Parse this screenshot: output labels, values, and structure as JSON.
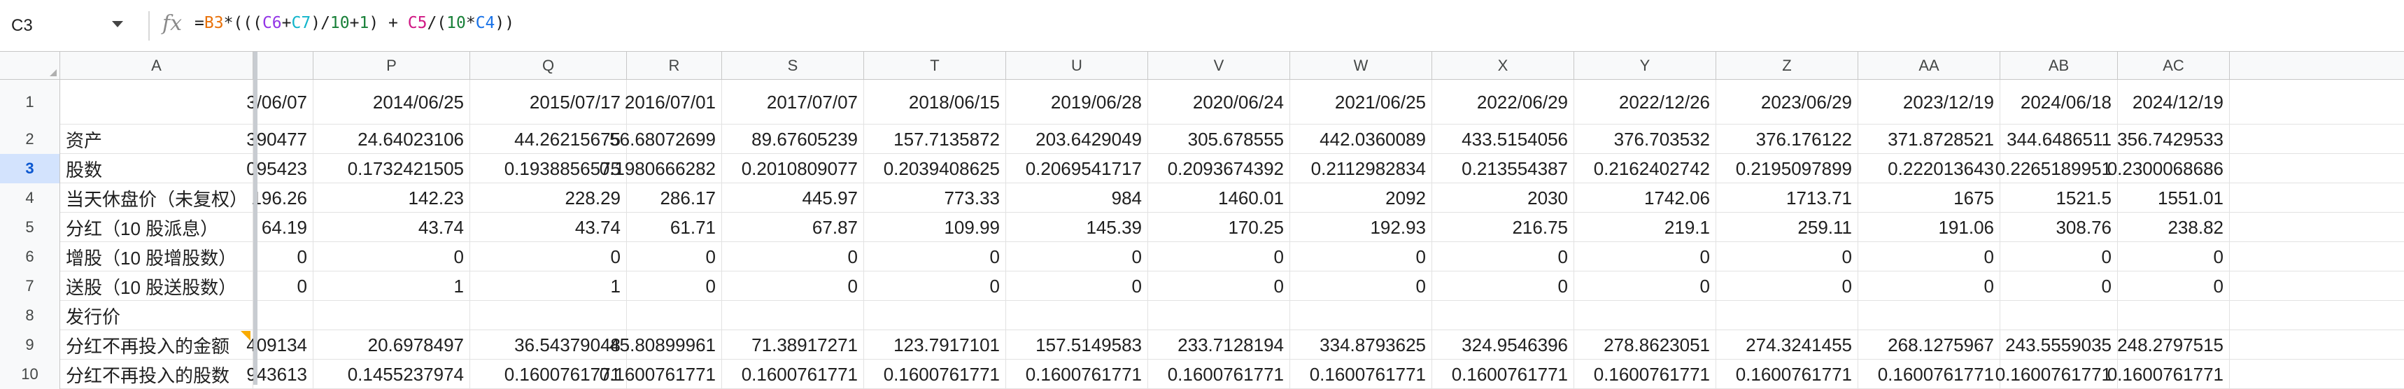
{
  "formula_bar": {
    "name_box": "C3",
    "fx_icon": "function-icon",
    "formula_prefix": "=",
    "formula_parts": [
      "B3",
      "*(((",
      "C6",
      "+",
      "C7",
      ")/",
      "10",
      "+",
      "1",
      ") + ",
      "C5",
      "/(",
      "10",
      "*",
      "C4",
      "))"
    ]
  },
  "columns": [
    {
      "letter": "A"
    },
    {
      "letter": ""
    },
    {
      "letter": "P"
    },
    {
      "letter": "Q"
    },
    {
      "letter": "R"
    },
    {
      "letter": "S"
    },
    {
      "letter": "T"
    },
    {
      "letter": "U"
    },
    {
      "letter": "V"
    },
    {
      "letter": "W"
    },
    {
      "letter": "X"
    },
    {
      "letter": "Y"
    },
    {
      "letter": "Z"
    },
    {
      "letter": "AA"
    },
    {
      "letter": "AB"
    },
    {
      "letter": "AC"
    }
  ],
  "rows": [
    {
      "num": "1",
      "label": "",
      "values": [
        "3/06/07",
        "2014/06/25",
        "2015/07/17",
        "2016/07/01",
        "2017/07/07",
        "2018/06/15",
        "2019/06/28",
        "2020/06/24",
        "2021/06/25",
        "2022/06/29",
        "2022/12/26",
        "2023/06/29",
        "2023/12/19",
        "2024/06/18",
        "2024/12/19"
      ]
    },
    {
      "num": "2",
      "label": "资产",
      "values": [
        "390477",
        "24.64023106",
        "44.26215675",
        "56.68072699",
        "89.67605239",
        "157.7135872",
        "203.6429049",
        "305.678555",
        "442.0360089",
        "433.5154056",
        "376.703532",
        "376.176122",
        "371.8728521",
        "344.6486511",
        "356.7429533"
      ]
    },
    {
      "num": "3",
      "label": "股数",
      "values": [
        "095423",
        "0.1732421505",
        "0.1938856575",
        "0.1980666282",
        "0.2010809077",
        "0.2039408625",
        "0.2069541717",
        "0.2093674392",
        "0.2112982834",
        "0.213554387",
        "0.2162402742",
        "0.2195097899",
        "0.222013643",
        "0.2265189951",
        "0.2300068686"
      ]
    },
    {
      "num": "4",
      "label": "当天休盘价（未复权）",
      "values": [
        "196.26",
        "142.23",
        "228.29",
        "286.17",
        "445.97",
        "773.33",
        "984",
        "1460.01",
        "2092",
        "2030",
        "1742.06",
        "1713.71",
        "1675",
        "1521.5",
        "1551.01"
      ]
    },
    {
      "num": "5",
      "label": "分红（10 股派息）",
      "values": [
        "64.19",
        "43.74",
        "43.74",
        "61.71",
        "67.87",
        "109.99",
        "145.39",
        "170.25",
        "192.93",
        "216.75",
        "219.1",
        "259.11",
        "191.06",
        "308.76",
        "238.82"
      ]
    },
    {
      "num": "6",
      "label": "增股（10 股增股数）",
      "values": [
        "0",
        "0",
        "0",
        "0",
        "0",
        "0",
        "0",
        "0",
        "0",
        "0",
        "0",
        "0",
        "0",
        "0",
        "0"
      ]
    },
    {
      "num": "7",
      "label": "送股（10 股送股数）",
      "values": [
        "0",
        "1",
        "1",
        "0",
        "0",
        "0",
        "0",
        "0",
        "0",
        "0",
        "0",
        "0",
        "0",
        "0",
        "0"
      ]
    },
    {
      "num": "8",
      "label": "发行价",
      "values": [
        "",
        "",
        "",
        "",
        "",
        "",
        "",
        "",
        "",
        "",
        "",
        "",
        "",
        "",
        ""
      ]
    },
    {
      "num": "9",
      "label": "分红不再投入的金额",
      "values": [
        "409134",
        "20.6978497",
        "36.54379048",
        "45.80899961",
        "71.38917271",
        "123.7917101",
        "157.5149583",
        "233.7128194",
        "334.8793625",
        "324.9546396",
        "278.8623051",
        "274.3241455",
        "268.1275967",
        "243.5559035",
        "248.2797515"
      ]
    },
    {
      "num": "10",
      "label": "分红不再投入的股数",
      "values": [
        "943613",
        "0.1455237974",
        "0.1600761771",
        "0.1600761771",
        "0.1600761771",
        "0.1600761771",
        "0.1600761771",
        "0.1600761771",
        "0.1600761771",
        "0.1600761771",
        "0.1600761771",
        "0.1600761771",
        "0.1600761771",
        "0.1600761771",
        "0.1600761771"
      ]
    }
  ],
  "colors": {
    "selection": "#1a73e8",
    "header_bg": "#f8f9fa",
    "active_row_bg": "#d3e3fd"
  }
}
